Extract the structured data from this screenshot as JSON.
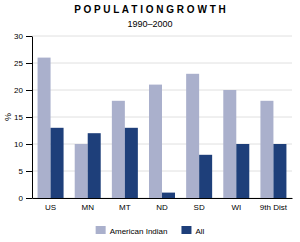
{
  "chart_data": {
    "type": "bar",
    "title": "P O P U L A T I O N   G R O W T H",
    "subtitle": "1990–2000",
    "ylabel": "%",
    "categories": [
      "US",
      "MN",
      "MT",
      "ND",
      "SD",
      "WI",
      "9th Dist"
    ],
    "series": [
      {
        "name": "American Indian",
        "color": "#aab0cc",
        "values": [
          26,
          10,
          18,
          21,
          23,
          20,
          18
        ]
      },
      {
        "name": "All",
        "color": "#1e3f7a",
        "values": [
          13,
          12,
          13,
          1,
          8,
          10,
          10
        ]
      }
    ],
    "ylim": [
      0,
      30
    ],
    "yticks": [
      0,
      5,
      10,
      15,
      20,
      25,
      30
    ],
    "grid": true,
    "legend": "bottom"
  }
}
